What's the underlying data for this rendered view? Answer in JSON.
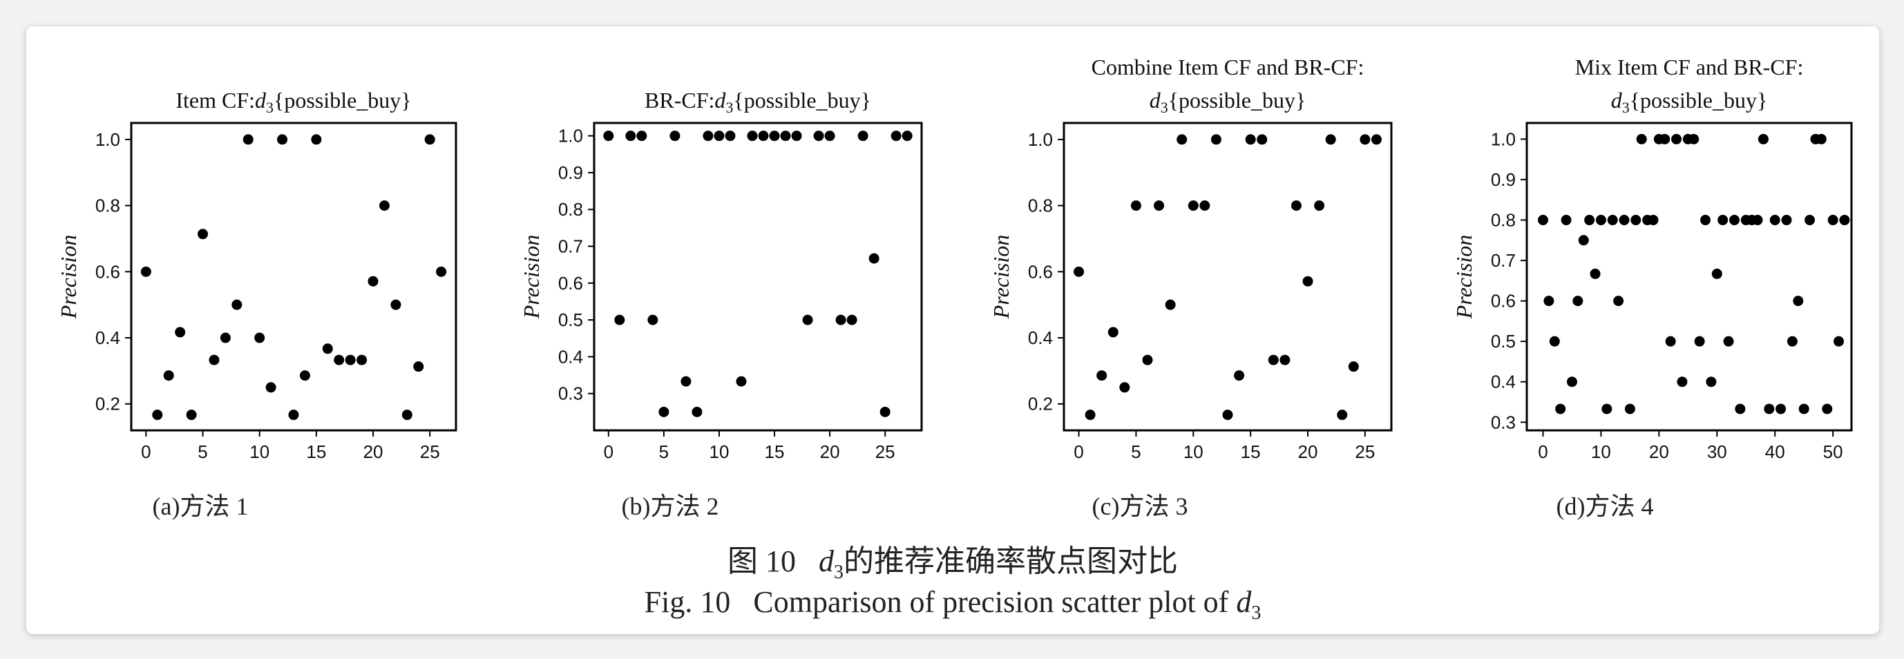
{
  "charts": [
    {
      "title_lines": [
        [
          "Item CF:",
          "d",
          "3",
          "{possible_buy}"
        ]
      ],
      "ylabel": "Precision",
      "caption": "(a)方法 1",
      "xlim": [
        -1.3,
        27.3
      ],
      "ylim": [
        0.12,
        1.05
      ],
      "xticks": [
        0,
        5,
        10,
        15,
        20,
        25
      ],
      "yticks": [
        "0.2",
        "0.4",
        "0.6",
        "0.8",
        "1.0"
      ]
    },
    {
      "title_lines": [
        [
          "BR-CF:",
          "d",
          "3",
          "{possible_buy}"
        ]
      ],
      "ylabel": "Precision",
      "caption": "(b)方法 2",
      "xlim": [
        -1.3,
        28.3
      ],
      "ylim": [
        0.2,
        1.035
      ],
      "xticks": [
        0,
        5,
        10,
        15,
        20,
        25
      ],
      "yticks": [
        "0.3",
        "0.4",
        "0.5",
        "0.6",
        "0.7",
        "0.8",
        "0.9",
        "1.0"
      ]
    },
    {
      "title_lines": [
        [
          "Combine Item CF and BR-CF:"
        ],
        [
          "",
          "d",
          "3",
          "{possible_buy}"
        ]
      ],
      "ylabel": "Precision",
      "caption": "(c)方法 3",
      "xlim": [
        -1.3,
        27.3
      ],
      "ylim": [
        0.12,
        1.05
      ],
      "xticks": [
        0,
        5,
        10,
        15,
        20,
        25
      ],
      "yticks": [
        "0.2",
        "0.4",
        "0.6",
        "0.8",
        "1.0"
      ]
    },
    {
      "title_lines": [
        [
          "Mix Item CF and BR-CF:"
        ],
        [
          "",
          "d",
          "3",
          "{possible_buy}"
        ]
      ],
      "ylabel": "Precision",
      "caption": "(d)方法 4",
      "xlim": [
        -2.8,
        53.2
      ],
      "ylim": [
        0.28,
        1.04
      ],
      "xticks": [
        0,
        10,
        20,
        30,
        40,
        50
      ],
      "yticks": [
        "0.3",
        "0.4",
        "0.5",
        "0.6",
        "0.7",
        "0.8",
        "0.9",
        "1.0"
      ]
    }
  ],
  "chart_data": [
    {
      "type": "scatter",
      "x": [
        0,
        1,
        2,
        3,
        4,
        5,
        6,
        7,
        8,
        9,
        10,
        11,
        12,
        13,
        14,
        15,
        16,
        17,
        18,
        19,
        20,
        21,
        22,
        23,
        24,
        25,
        26
      ],
      "y": [
        0.6,
        0.167,
        0.286,
        0.417,
        0.167,
        0.714,
        0.333,
        0.4,
        0.5,
        1.0,
        0.4,
        0.25,
        1.0,
        0.167,
        0.286,
        1.0,
        0.367,
        0.333,
        0.333,
        0.333,
        0.571,
        0.8,
        0.5,
        0.167,
        0.313,
        1.0,
        0.6
      ]
    },
    {
      "type": "scatter",
      "x": [
        0,
        1,
        2,
        3,
        4,
        5,
        6,
        7,
        8,
        9,
        10,
        11,
        12,
        13,
        14,
        15,
        16,
        17,
        18,
        19,
        20,
        21,
        22,
        23,
        24,
        25,
        26,
        27
      ],
      "y": [
        1.0,
        0.5,
        1.0,
        1.0,
        0.5,
        0.25,
        1.0,
        0.333,
        0.25,
        1.0,
        1.0,
        1.0,
        0.333,
        1.0,
        1.0,
        1.0,
        1.0,
        1.0,
        0.5,
        1.0,
        1.0,
        0.5,
        0.5,
        1.0,
        0.667,
        0.25,
        1.0,
        1.0
      ]
    },
    {
      "type": "scatter",
      "x": [
        0,
        1,
        2,
        3,
        4,
        5,
        6,
        7,
        8,
        9,
        10,
        11,
        12,
        13,
        14,
        15,
        16,
        17,
        18,
        19,
        20,
        21,
        22,
        23,
        24,
        25,
        26
      ],
      "y": [
        0.6,
        0.167,
        0.286,
        0.417,
        0.25,
        0.8,
        0.333,
        0.8,
        0.5,
        1.0,
        0.8,
        0.8,
        1.0,
        0.167,
        0.286,
        1.0,
        1.0,
        0.333,
        0.333,
        0.8,
        0.571,
        0.8,
        1.0,
        0.167,
        0.313,
        1.0,
        1.0
      ]
    },
    {
      "type": "scatter",
      "x": [
        0,
        1,
        2,
        3,
        4,
        5,
        6,
        7,
        8,
        9,
        10,
        11,
        12,
        13,
        14,
        15,
        16,
        17,
        18,
        19,
        20,
        21,
        22,
        23,
        24,
        25,
        26,
        27,
        28,
        29,
        30,
        31,
        32,
        33,
        34,
        35,
        36,
        37,
        38,
        39,
        40,
        41,
        42,
        43,
        44,
        45,
        46,
        47,
        48,
        49,
        50,
        51,
        52
      ],
      "y": [
        0.8,
        0.6,
        0.5,
        0.333,
        0.8,
        0.4,
        0.6,
        0.75,
        0.8,
        0.667,
        0.8,
        0.333,
        0.8,
        0.6,
        0.8,
        0.333,
        0.8,
        1.0,
        0.8,
        0.8,
        1.0,
        1.0,
        0.5,
        1.0,
        0.4,
        1.0,
        1.0,
        0.5,
        0.8,
        0.4,
        0.667,
        0.8,
        0.5,
        0.8,
        0.333,
        0.8,
        0.8,
        0.8,
        1.0,
        0.333,
        0.8,
        0.333,
        0.8,
        0.5,
        0.6,
        0.333,
        0.8,
        1.0,
        1.0,
        0.333,
        0.8,
        0.5,
        0.8
      ]
    }
  ],
  "figure_caption": {
    "cn_prefix": "图 10",
    "cn_var": "d",
    "cn_sub": "3",
    "cn_text": "的推荐准确率散点图对比",
    "en_prefix": "Fig. 10",
    "en_text": "Comparison of precision scatter plot of",
    "en_var": "d",
    "en_sub": "3"
  },
  "colors": {
    "marker": "#000000",
    "axis": "#000000",
    "plot_bg": "#ffffff",
    "card_bg": "#ffffff",
    "page_bg": "#f2f2f2"
  }
}
